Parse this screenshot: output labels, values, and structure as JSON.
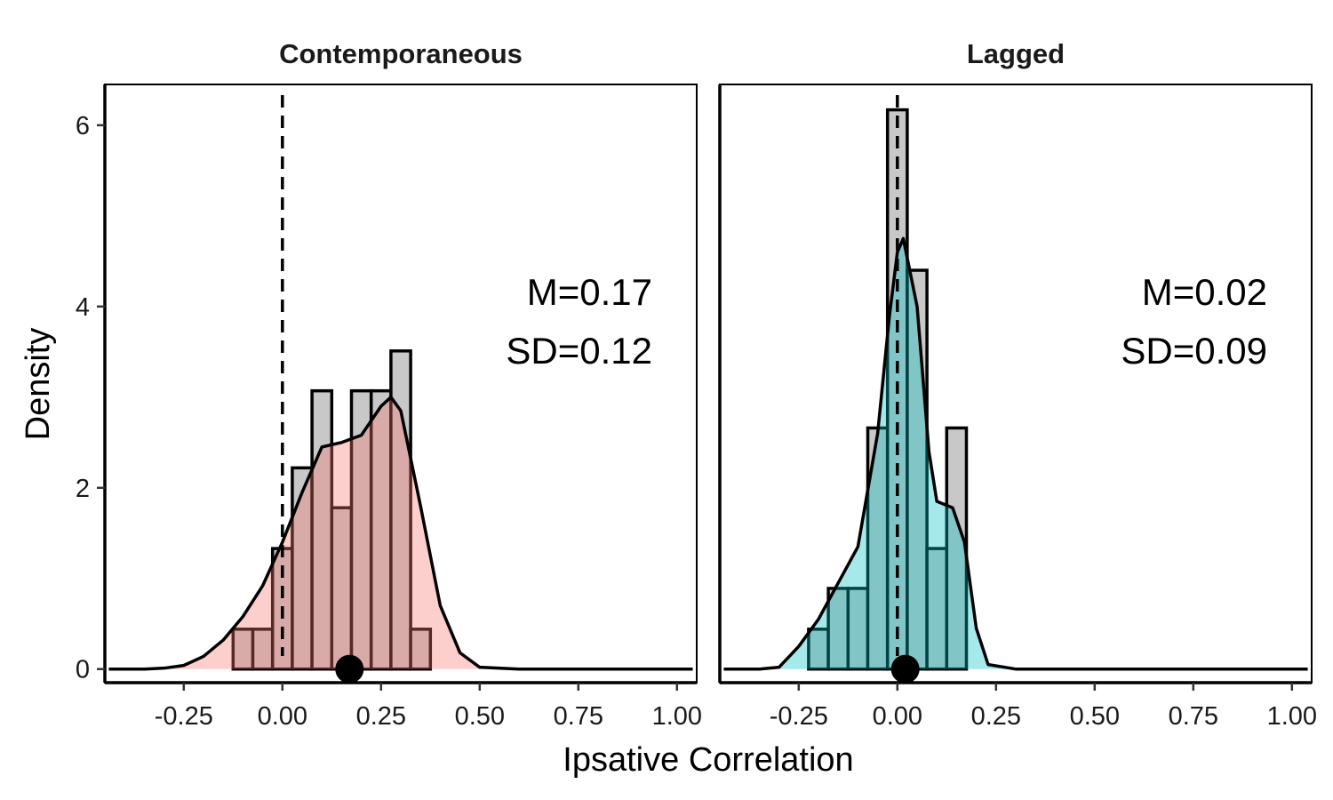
{
  "chart_data": {
    "type": "histogram",
    "xlabel": "Ipsative Correlation",
    "ylabel": "Density",
    "xlim": [
      -0.45,
      1.05
    ],
    "ylim": [
      -0.15,
      6.45
    ],
    "x_ticks": [
      "-0.25",
      "0.00",
      "0.25",
      "0.50",
      "0.75",
      "1.00"
    ],
    "y_ticks": [
      "0",
      "2",
      "4",
      "6"
    ],
    "bin_width": 0.05,
    "reference_line_x": 0,
    "panels": [
      {
        "title": "Contemporaneous",
        "fill_color": "#f8766d",
        "bins_left_edge": [
          -0.125,
          -0.075,
          -0.025,
          0.025,
          0.075,
          0.125,
          0.175,
          0.225,
          0.275,
          0.325
        ],
        "bins_density": [
          0.44,
          0.44,
          1.33,
          2.22,
          3.07,
          1.78,
          3.07,
          3.07,
          3.51,
          0.44
        ],
        "density_curve": [
          [
            -0.44,
            0
          ],
          [
            -0.35,
            0.0
          ],
          [
            -0.3,
            0.01
          ],
          [
            -0.25,
            0.04
          ],
          [
            -0.2,
            0.14
          ],
          [
            -0.15,
            0.32
          ],
          [
            -0.1,
            0.58
          ],
          [
            -0.05,
            0.92
          ],
          [
            0.0,
            1.4
          ],
          [
            0.05,
            1.95
          ],
          [
            0.1,
            2.45
          ],
          [
            0.15,
            2.5
          ],
          [
            0.2,
            2.58
          ],
          [
            0.25,
            2.9
          ],
          [
            0.275,
            3.0
          ],
          [
            0.3,
            2.85
          ],
          [
            0.35,
            1.8
          ],
          [
            0.4,
            0.7
          ],
          [
            0.45,
            0.18
          ],
          [
            0.5,
            0.02
          ],
          [
            0.6,
            0.0
          ],
          [
            0.8,
            0.0
          ],
          [
            1.04,
            0
          ]
        ],
        "mean_marker": 0.17,
        "mean_label": "M=0.17",
        "sd_label": "SD=0.12"
      },
      {
        "title": "Lagged",
        "fill_color": "#00bfc4",
        "bins_left_edge": [
          -0.225,
          -0.175,
          -0.125,
          -0.075,
          -0.025,
          0.025,
          0.075,
          0.125
        ],
        "bins_density": [
          0.44,
          0.89,
          0.89,
          2.66,
          6.17,
          4.4,
          1.33,
          2.66
        ],
        "density_curve": [
          [
            -0.44,
            0
          ],
          [
            -0.35,
            0.0
          ],
          [
            -0.3,
            0.02
          ],
          [
            -0.25,
            0.25
          ],
          [
            -0.2,
            0.55
          ],
          [
            -0.15,
            0.95
          ],
          [
            -0.1,
            1.35
          ],
          [
            -0.05,
            2.6
          ],
          [
            -0.02,
            3.9
          ],
          [
            0.0,
            4.6
          ],
          [
            0.015,
            4.75
          ],
          [
            0.05,
            4.0
          ],
          [
            0.08,
            2.4
          ],
          [
            0.1,
            1.85
          ],
          [
            0.14,
            1.78
          ],
          [
            0.17,
            1.4
          ],
          [
            0.2,
            0.45
          ],
          [
            0.23,
            0.05
          ],
          [
            0.3,
            0.0
          ],
          [
            0.6,
            0.0
          ],
          [
            1.04,
            0
          ]
        ],
        "mean_marker": 0.02,
        "mean_label": "M=0.02",
        "sd_label": "SD=0.09"
      }
    ]
  }
}
